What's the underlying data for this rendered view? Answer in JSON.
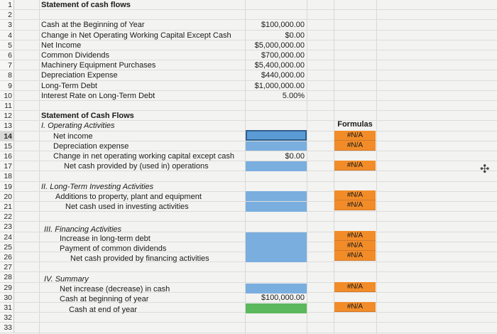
{
  "row_numbers": [
    "1",
    "2",
    "3",
    "4",
    "5",
    "6",
    "7",
    "8",
    "9",
    "10",
    "11",
    "12",
    "13",
    "14",
    "15",
    "16",
    "17",
    "18",
    "19",
    "20",
    "21",
    "22",
    "23",
    "24",
    "25",
    "26",
    "27",
    "28",
    "29",
    "30",
    "31",
    "32",
    "33"
  ],
  "header": {
    "title": "Statement of cash flows"
  },
  "inputs": [
    {
      "label": "Cash at the Beginning of Year",
      "value": "$100,000.00"
    },
    {
      "label": "Change in Net Operating Working Capital Except Cash",
      "value": "$0.00"
    },
    {
      "label": "Net Income",
      "value": "$5,000,000.00"
    },
    {
      "label": "Common Dividends",
      "value": "$700,000.00"
    },
    {
      "label": "Machinery Equipment Purchases",
      "value": "$5,400,000.00"
    },
    {
      "label": "Depreciation Expense",
      "value": "$440,000.00"
    },
    {
      "label": "Long-Term Debt",
      "value": "$1,000,000.00"
    },
    {
      "label": "Interest Rate on Long-Term Debt",
      "value": "5.00%"
    }
  ],
  "statement": {
    "title": "Statement of Cash Flows",
    "formulas_header": "Formulas",
    "operating": {
      "heading": "I.  Operating Activities",
      "net_income": "Net income",
      "depreciation": "Depreciation expense",
      "change_nowc": "Change in net operating working capital except cash",
      "change_nowc_value": "$0.00",
      "net_cash": "Net cash provided by (used in) operations"
    },
    "investing": {
      "heading": "II.  Long-Term Investing Activities",
      "additions": "Additions to property, plant and equipment",
      "net_cash": "Net cash used in investing activities"
    },
    "financing": {
      "heading": "III.  Financing Activities",
      "debt": "Increase in long-term debt",
      "dividends": "Payment of common dividends",
      "net_cash": "Net cash provided by financing activities"
    },
    "summary": {
      "heading": "IV.  Summary",
      "net_increase": "Net increase (decrease) in cash",
      "beginning": "Cash at beginning of year",
      "beginning_value": "$100,000.00",
      "end": "Cash at end of year"
    },
    "na": "#N/A"
  },
  "colors": {
    "input_blue": "#5b9bd5",
    "formula_orange": "#f28c28",
    "result_green": "#5bb85c"
  },
  "icons": {
    "cursor": "plus-cursor-icon"
  }
}
